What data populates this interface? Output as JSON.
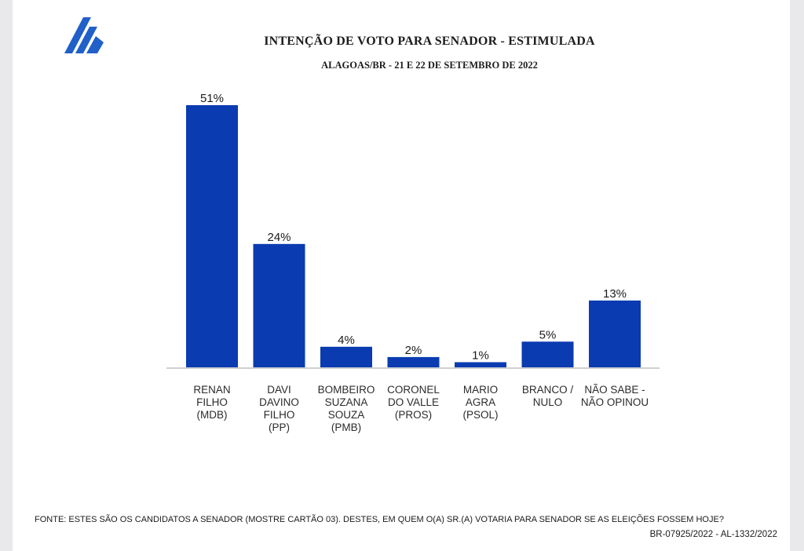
{
  "chart_data": {
    "type": "bar",
    "title": "INTENÇÃO DE VOTO PARA SENADOR - ESTIMULADA",
    "subtitle": "ALAGOAS/BR - 21 E 22 DE SETEMBRO DE 2022",
    "categories": [
      "RENAN\nFILHO\n(MDB)",
      "DAVI\nDAVINO\nFILHO\n(PP)",
      "BOMBEIRO\nSUZANA\nSOUZA\n(PMB)",
      "CORONEL\nDO VALLE\n(PROS)",
      "MARIO\nAGRA\n(PSOL)",
      "BRANCO /\nNULO",
      "NÃO SABE  -\nNÃO OPINOU"
    ],
    "values": [
      51,
      24,
      4,
      2,
      1,
      5,
      13
    ],
    "data_labels": [
      "51%",
      "24%",
      "4%",
      "2%",
      "1%",
      "5%",
      "13%"
    ],
    "ylim": [
      0,
      51
    ],
    "xlabel": "",
    "ylabel": "",
    "bar_color": "#0a3bb0",
    "axis_color": "#bfbfbf"
  },
  "footer": {
    "source": "FONTE: ESTES SÃO OS CANDIDATOS A SENADOR (MOSTRE CARTÃO 03). DESTES, EM QUEM O(A) SR.(A) VOTARIA PARA SENADOR SE AS ELEIÇÕES FOSSEM HOJE?",
    "registration": "BR-07925/2022 - AL-1332/2022"
  },
  "brand": {
    "logo_icon": "mountain-stripes-logo-icon",
    "logo_color": "#2060c8"
  }
}
